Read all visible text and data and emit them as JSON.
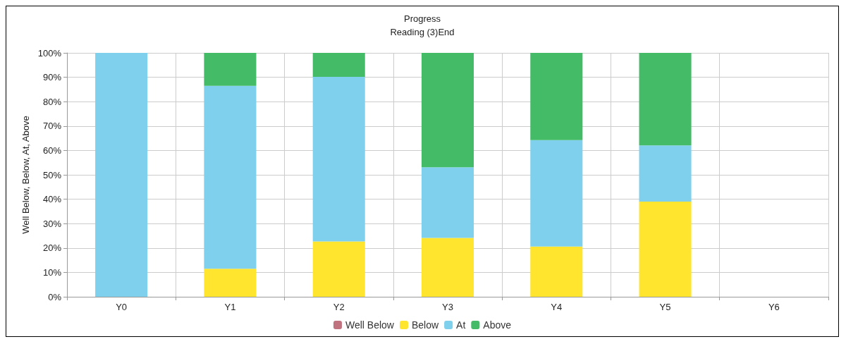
{
  "chart_data": {
    "type": "bar",
    "title": "Progress",
    "subtitle": "Reading (3)End",
    "ylabel": "Well Below, Below, At, Above",
    "categories": [
      "Y0",
      "Y1",
      "Y2",
      "Y3",
      "Y4",
      "Y5",
      "Y6"
    ],
    "stacked": true,
    "series": [
      {
        "name": "Well Below",
        "color": "#c0737f",
        "values": [
          null,
          null,
          null,
          null,
          null,
          null,
          null
        ]
      },
      {
        "name": "Below",
        "color": "#ffe52e",
        "values": [
          null,
          11.5,
          22.7,
          24.1,
          20.6,
          39.0,
          null
        ]
      },
      {
        "name": "At",
        "color": "#7fd0ec",
        "values": [
          100,
          75.0,
          67.5,
          29.0,
          43.6,
          23.1,
          null
        ]
      },
      {
        "name": "Above",
        "color": "#44bb66",
        "values": [
          null,
          13.5,
          9.8,
          46.9,
          35.8,
          37.9,
          null
        ]
      }
    ],
    "ylim": [
      0,
      100
    ],
    "yticks": [
      {
        "value": 0,
        "label": "0%"
      },
      {
        "value": 10,
        "label": "10%"
      },
      {
        "value": 20,
        "label": "20%"
      },
      {
        "value": 30,
        "label": "30%"
      },
      {
        "value": 40,
        "label": "40%"
      },
      {
        "value": 50,
        "label": "50%"
      },
      {
        "value": 60,
        "label": "60%"
      },
      {
        "value": 70,
        "label": "70%"
      },
      {
        "value": 80,
        "label": "80%"
      },
      {
        "value": 90,
        "label": "90%"
      },
      {
        "value": 100,
        "label": "100%"
      }
    ],
    "grid": true,
    "legend": "bottom"
  }
}
